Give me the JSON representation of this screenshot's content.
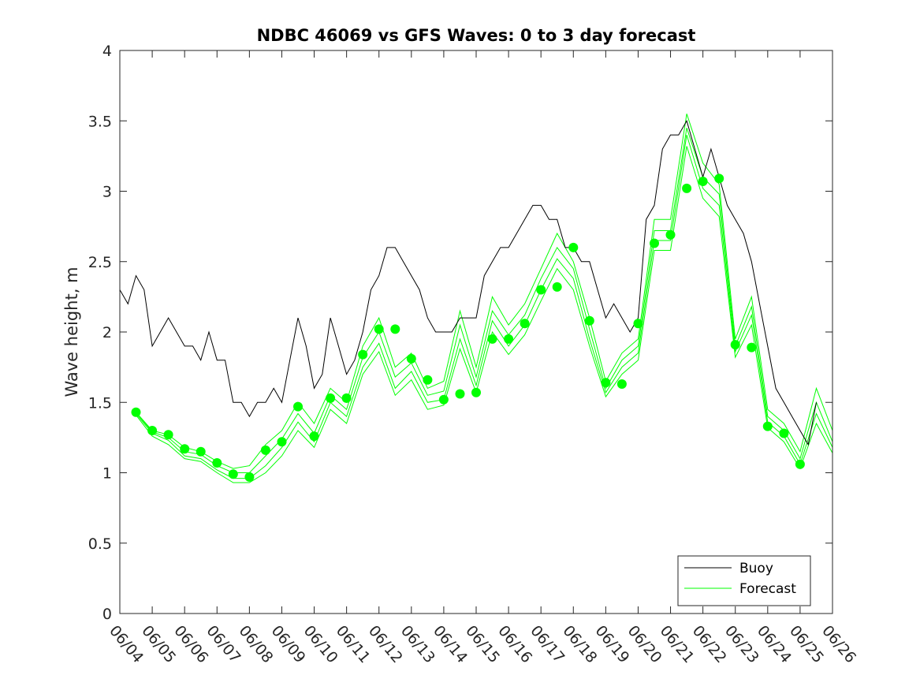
{
  "chart_data": {
    "type": "line",
    "title": "NDBC 46069 vs GFS Waves: 0 to 3 day forecast",
    "xlabel": "",
    "ylabel": "Wave height, m",
    "xlim": [
      "06/04",
      "06/26"
    ],
    "ylim": [
      0,
      4
    ],
    "yticks": [
      0,
      0.5,
      1,
      1.5,
      2,
      2.5,
      3,
      3.5,
      4
    ],
    "xtick_labels": [
      "06/04",
      "06/05",
      "06/06",
      "06/07",
      "06/08",
      "06/09",
      "06/10",
      "06/11",
      "06/12",
      "06/13",
      "06/14",
      "06/15",
      "06/16",
      "06/17",
      "06/18",
      "06/19",
      "06/20",
      "06/21",
      "06/22",
      "06/23",
      "06/24",
      "06/25",
      "06/26"
    ],
    "grid": false,
    "legend_position": "bottom-right",
    "colors": {
      "buoy": "#000000",
      "forecast": "#00ff00"
    },
    "buoy": {
      "name": "Buoy",
      "x": [
        "06/04 00:00",
        "06/04 06:00",
        "06/04 12:00",
        "06/04 18:00",
        "06/05 00:00",
        "06/05 06:00",
        "06/05 12:00",
        "06/05 18:00",
        "06/06 00:00",
        "06/06 06:00",
        "06/06 12:00",
        "06/06 18:00",
        "06/07 00:00",
        "06/07 06:00",
        "06/07 12:00",
        "06/07 18:00",
        "06/08 00:00",
        "06/08 06:00",
        "06/08 12:00",
        "06/08 18:00",
        "06/09 00:00",
        "06/09 06:00",
        "06/09 12:00",
        "06/09 18:00",
        "06/10 00:00",
        "06/10 06:00",
        "06/10 12:00",
        "06/10 18:00",
        "06/11 00:00",
        "06/11 06:00",
        "06/11 12:00",
        "06/11 18:00",
        "06/12 00:00",
        "06/12 06:00",
        "06/12 12:00",
        "06/12 18:00",
        "06/13 00:00",
        "06/13 06:00",
        "06/13 12:00",
        "06/13 18:00",
        "06/14 00:00",
        "06/14 06:00",
        "06/14 12:00",
        "06/14 18:00",
        "06/15 00:00",
        "06/15 06:00",
        "06/15 12:00",
        "06/15 18:00",
        "06/16 00:00",
        "06/16 06:00",
        "06/16 12:00",
        "06/16 18:00",
        "06/17 00:00",
        "06/17 06:00",
        "06/17 12:00",
        "06/17 18:00",
        "06/18 00:00",
        "06/18 06:00",
        "06/18 12:00",
        "06/18 18:00",
        "06/19 00:00",
        "06/19 06:00",
        "06/19 12:00",
        "06/19 18:00",
        "06/20 00:00",
        "06/20 06:00",
        "06/20 12:00",
        "06/20 18:00",
        "06/21 00:00",
        "06/21 06:00",
        "06/21 12:00",
        "06/21 18:00",
        "06/22 00:00",
        "06/22 06:00",
        "06/22 12:00",
        "06/22 18:00",
        "06/23 00:00",
        "06/23 06:00",
        "06/23 12:00",
        "06/23 18:00",
        "06/24 00:00",
        "06/24 06:00",
        "06/24 12:00",
        "06/24 18:00",
        "06/25 00:00",
        "06/25 06:00",
        "06/25 12:00"
      ],
      "y": [
        2.3,
        2.2,
        2.4,
        2.3,
        1.9,
        2.0,
        2.1,
        2.0,
        1.9,
        1.9,
        1.8,
        2.0,
        1.8,
        1.8,
        1.5,
        1.5,
        1.4,
        1.5,
        1.5,
        1.6,
        1.5,
        1.8,
        2.1,
        1.9,
        1.6,
        1.7,
        2.1,
        1.9,
        1.7,
        1.8,
        2.0,
        2.3,
        2.4,
        2.6,
        2.6,
        2.5,
        2.4,
        2.3,
        2.1,
        2.0,
        2.0,
        2.0,
        2.1,
        2.1,
        2.1,
        2.4,
        2.5,
        2.6,
        2.6,
        2.7,
        2.8,
        2.9,
        2.9,
        2.8,
        2.8,
        2.6,
        2.6,
        2.5,
        2.5,
        2.3,
        2.1,
        2.2,
        2.1,
        2.0,
        2.1,
        2.8,
        2.9,
        3.3,
        3.4,
        3.4,
        3.5,
        3.3,
        3.1,
        3.3,
        3.1,
        2.9,
        2.8,
        2.7,
        2.5,
        2.2,
        1.9,
        1.6,
        1.5,
        1.4,
        1.3,
        1.2,
        1.5
      ]
    },
    "forecast": {
      "name": "Forecast",
      "daily_points": {
        "x": [
          "06/04 12:00",
          "06/05 00:00",
          "06/05 12:00",
          "06/06 00:00",
          "06/06 12:00",
          "06/07 00:00",
          "06/07 12:00",
          "06/08 00:00",
          "06/08 12:00",
          "06/09 00:00",
          "06/09 12:00",
          "06/10 00:00",
          "06/10 12:00",
          "06/11 00:00",
          "06/11 12:00",
          "06/12 00:00",
          "06/12 12:00",
          "06/13 00:00",
          "06/13 12:00",
          "06/14 00:00",
          "06/14 12:00",
          "06/15 00:00",
          "06/15 12:00",
          "06/16 00:00",
          "06/16 12:00",
          "06/17 00:00",
          "06/17 12:00",
          "06/18 00:00",
          "06/18 12:00",
          "06/19 00:00",
          "06/19 12:00",
          "06/20 00:00",
          "06/20 12:00",
          "06/21 00:00",
          "06/21 12:00",
          "06/22 00:00",
          "06/22 12:00",
          "06/23 00:00",
          "06/23 12:00",
          "06/24 00:00",
          "06/24 12:00",
          "06/25 00:00"
        ],
        "y": [
          1.43,
          1.3,
          1.27,
          1.17,
          1.15,
          1.07,
          0.99,
          0.97,
          1.16,
          1.22,
          1.47,
          1.26,
          1.53,
          1.53,
          1.84,
          2.02,
          2.02,
          1.81,
          1.66,
          1.52,
          1.56,
          1.57,
          1.95,
          1.95,
          2.06,
          2.3,
          2.32,
          2.6,
          2.08,
          1.64,
          1.63,
          2.06,
          2.63,
          2.69,
          3.02,
          3.07,
          3.09,
          1.91,
          1.89,
          1.33,
          1.28,
          1.06
        ]
      },
      "ensemble_runs": [
        {
          "x": [
            "06/04 12:00",
            "06/05 00:00",
            "06/05 12:00",
            "06/06 00:00",
            "06/06 12:00",
            "06/07 00:00",
            "06/07 12:00",
            "06/08 00:00",
            "06/08 12:00",
            "06/09 00:00",
            "06/09 12:00",
            "06/10 00:00",
            "06/10 12:00",
            "06/11 00:00",
            "06/11 12:00",
            "06/12 00:00",
            "06/12 12:00",
            "06/13 00:00",
            "06/13 12:00",
            "06/14 00:00",
            "06/14 12:00",
            "06/15 00:00",
            "06/15 12:00",
            "06/16 00:00",
            "06/16 12:00",
            "06/17 00:00",
            "06/17 12:00",
            "06/18 00:00",
            "06/18 12:00",
            "06/19 00:00",
            "06/19 12:00",
            "06/20 00:00",
            "06/20 12:00",
            "06/21 00:00",
            "06/21 12:00",
            "06/22 00:00",
            "06/22 12:00",
            "06/23 00:00",
            "06/23 12:00",
            "06/24 00:00",
            "06/24 12:00",
            "06/25 00:00",
            "06/25 12:00",
            "06/26 00:00"
          ],
          "y": [
            1.43,
            1.3,
            1.27,
            1.18,
            1.15,
            1.08,
            1.03,
            1.05,
            1.2,
            1.3,
            1.5,
            1.35,
            1.6,
            1.5,
            1.9,
            2.1,
            1.75,
            1.85,
            1.6,
            1.65,
            2.15,
            1.75,
            2.25,
            2.05,
            2.2,
            2.45,
            2.7,
            2.5,
            2.1,
            1.65,
            1.85,
            1.95,
            2.8,
            2.8,
            3.55,
            3.2,
            3.05,
            1.95,
            2.25,
            1.45,
            1.35,
            1.15,
            1.6,
            1.3
          ]
        },
        {
          "x": [
            "06/04 12:00",
            "06/05 00:00",
            "06/05 12:00",
            "06/06 00:00",
            "06/06 12:00",
            "06/07 00:00",
            "06/07 12:00",
            "06/08 00:00",
            "06/08 12:00",
            "06/09 00:00",
            "06/09 12:00",
            "06/10 00:00",
            "06/10 12:00",
            "06/11 00:00",
            "06/11 12:00",
            "06/12 00:00",
            "06/12 12:00",
            "06/13 00:00",
            "06/13 12:00",
            "06/14 00:00",
            "06/14 12:00",
            "06/15 00:00",
            "06/15 12:00",
            "06/16 00:00",
            "06/16 12:00",
            "06/17 00:00",
            "06/17 12:00",
            "06/18 00:00",
            "06/18 12:00",
            "06/19 00:00",
            "06/19 12:00",
            "06/20 00:00",
            "06/20 12:00",
            "06/21 00:00",
            "06/21 12:00",
            "06/22 00:00",
            "06/22 12:00",
            "06/23 00:00",
            "06/23 12:00",
            "06/24 00:00",
            "06/24 12:00",
            "06/25 00:00",
            "06/25 12:00",
            "06/26 00:00"
          ],
          "y": [
            1.43,
            1.29,
            1.25,
            1.15,
            1.13,
            1.05,
            1.0,
            1.0,
            1.12,
            1.24,
            1.42,
            1.28,
            1.55,
            1.45,
            1.82,
            2.0,
            1.68,
            1.78,
            1.55,
            1.58,
            2.05,
            1.68,
            2.15,
            1.98,
            2.12,
            2.38,
            2.6,
            2.45,
            2.02,
            1.6,
            1.8,
            1.9,
            2.72,
            2.72,
            3.45,
            3.1,
            2.98,
            1.9,
            2.18,
            1.4,
            1.3,
            1.1,
            1.5,
            1.22
          ]
        },
        {
          "x": [
            "06/04 12:00",
            "06/05 00:00",
            "06/05 12:00",
            "06/06 00:00",
            "06/06 12:00",
            "06/07 00:00",
            "06/07 12:00",
            "06/08 00:00",
            "06/08 12:00",
            "06/09 00:00",
            "06/09 12:00",
            "06/10 00:00",
            "06/10 12:00",
            "06/11 00:00",
            "06/11 12:00",
            "06/12 00:00",
            "06/12 12:00",
            "06/13 00:00",
            "06/13 12:00",
            "06/14 00:00",
            "06/14 12:00",
            "06/15 00:00",
            "06/15 12:00",
            "06/16 00:00",
            "06/16 12:00",
            "06/17 00:00",
            "06/17 12:00",
            "06/18 00:00",
            "06/18 12:00",
            "06/19 00:00",
            "06/19 12:00",
            "06/20 00:00",
            "06/20 12:00",
            "06/21 00:00",
            "06/21 12:00",
            "06/22 00:00",
            "06/22 12:00",
            "06/23 00:00",
            "06/23 12:00",
            "06/24 00:00",
            "06/24 12:00",
            "06/25 00:00",
            "06/25 12:00",
            "06/26 00:00"
          ],
          "y": [
            1.42,
            1.28,
            1.23,
            1.12,
            1.1,
            1.02,
            0.96,
            0.96,
            1.05,
            1.18,
            1.36,
            1.22,
            1.5,
            1.4,
            1.75,
            1.92,
            1.6,
            1.72,
            1.5,
            1.52,
            1.95,
            1.62,
            2.08,
            1.9,
            2.05,
            2.3,
            2.52,
            2.38,
            1.95,
            1.57,
            1.75,
            1.85,
            2.65,
            2.65,
            3.4,
            3.02,
            2.9,
            1.86,
            2.12,
            1.36,
            1.26,
            1.06,
            1.42,
            1.18
          ]
        },
        {
          "x": [
            "06/04 12:00",
            "06/05 00:00",
            "06/05 12:00",
            "06/06 00:00",
            "06/06 12:00",
            "06/07 00:00",
            "06/07 12:00",
            "06/08 00:00",
            "06/08 12:00",
            "06/09 00:00",
            "06/09 12:00",
            "06/10 00:00",
            "06/10 12:00",
            "06/11 00:00",
            "06/11 12:00",
            "06/12 00:00",
            "06/12 12:00",
            "06/13 00:00",
            "06/13 12:00",
            "06/14 00:00",
            "06/14 12:00",
            "06/15 00:00",
            "06/15 12:00",
            "06/16 00:00",
            "06/16 12:00",
            "06/17 00:00",
            "06/17 12:00",
            "06/18 00:00",
            "06/18 12:00",
            "06/19 00:00",
            "06/19 12:00",
            "06/20 00:00",
            "06/20 12:00",
            "06/21 00:00",
            "06/21 12:00",
            "06/22 00:00",
            "06/22 12:00",
            "06/23 00:00",
            "06/23 12:00",
            "06/24 00:00",
            "06/24 12:00",
            "06/25 00:00",
            "06/25 12:00",
            "06/26 00:00"
          ],
          "y": [
            1.41,
            1.26,
            1.2,
            1.1,
            1.08,
            1.0,
            0.93,
            0.93,
            1.0,
            1.12,
            1.3,
            1.18,
            1.45,
            1.35,
            1.7,
            1.86,
            1.55,
            1.66,
            1.45,
            1.48,
            1.88,
            1.57,
            2.0,
            1.84,
            1.98,
            2.22,
            2.45,
            2.3,
            1.9,
            1.54,
            1.7,
            1.8,
            2.58,
            2.58,
            3.32,
            2.95,
            2.82,
            1.82,
            2.05,
            1.32,
            1.22,
            1.03,
            1.35,
            1.14
          ]
        }
      ]
    },
    "legend": [
      {
        "label": "Buoy",
        "color": "#000000"
      },
      {
        "label": "Forecast",
        "color": "#00ff00"
      }
    ]
  }
}
